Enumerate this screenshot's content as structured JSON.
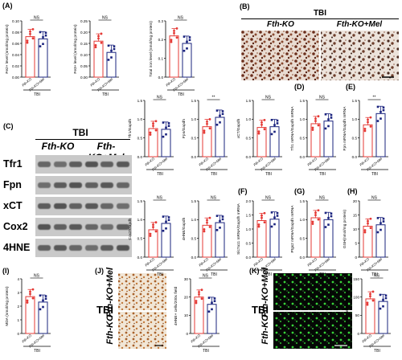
{
  "panels": {
    "A": {
      "label": "(A)"
    },
    "B": {
      "label": "(B)",
      "header": "TBI",
      "left": "Fth-KO",
      "right": "Fth-KO+Mel"
    },
    "C": {
      "label": "(C)",
      "header": "TBI",
      "left_group": "Fth-KO",
      "right_group": "Fth-KO+Mel",
      "bands": [
        "Tfr1",
        "Fpn",
        "xCT",
        "Cox2",
        "4HNE"
      ]
    },
    "D": {
      "label": "(D)"
    },
    "E": {
      "label": "(E)"
    },
    "F": {
      "label": "(F)"
    },
    "G": {
      "label": "(G)"
    },
    "H": {
      "label": "(H)"
    },
    "I": {
      "label": "(I)"
    },
    "J": {
      "label": "(J)",
      "tbi": "TBI",
      "row1": "Fth-KO",
      "row2": "Fth-KO+Mel"
    },
    "K": {
      "label": "(K)",
      "tbi": "TBI",
      "row1": "Fth-KO",
      "row2": "Fth-KO+Mel"
    }
  },
  "colors": {
    "ko": "#e53935",
    "mel": "#1a237e"
  },
  "chart_data": [
    {
      "id": "A1",
      "type": "bar",
      "ylabel": "Fe2+ level (nmol/mg protein)",
      "ylim": [
        0,
        0.1
      ],
      "yticks": [
        "0.00",
        "0.02",
        "0.04",
        "0.06",
        "0.08",
        "0.10"
      ],
      "categories": [
        "Fth-KO",
        "Fth-KO+Mel"
      ],
      "values": [
        0.072,
        0.068
      ],
      "sig": "NS",
      "group": "TBI"
    },
    {
      "id": "A2",
      "type": "bar",
      "ylabel": "Fe3+ level (nmol/mg protein)",
      "ylim": [
        0,
        0.25
      ],
      "yticks": [
        "0.00",
        "0.05",
        "0.10",
        "0.15",
        "0.20",
        "0.25"
      ],
      "categories": [
        "Fth-KO",
        "Fth-KO+Mel"
      ],
      "values": [
        0.16,
        0.11
      ],
      "sig": "NS",
      "group": "TBI"
    },
    {
      "id": "A3",
      "type": "bar",
      "ylabel": "Total iron level (nmol/mg protein)",
      "ylim": [
        0,
        0.3
      ],
      "yticks": [
        "0.0",
        "0.1",
        "0.2",
        "0.3"
      ],
      "categories": [
        "Fth-KO",
        "Fth-KO+Mel"
      ],
      "values": [
        0.22,
        0.18
      ],
      "sig": "NS",
      "group": "TBI"
    },
    {
      "id": "C1",
      "type": "bar",
      "ylabel": "Tfr1/Gapdh",
      "ylim": [
        0,
        1.5
      ],
      "yticks": [
        "0.0",
        "0.5",
        "1.0",
        "1.5"
      ],
      "categories": [
        "Fth-KO",
        "Fth-KO+Mel"
      ],
      "values": [
        0.75,
        0.73
      ],
      "sig": "NS",
      "group": "TBI"
    },
    {
      "id": "C2",
      "type": "bar",
      "ylabel": "Fpn/Gapdh",
      "ylim": [
        0,
        1.5
      ],
      "yticks": [
        "0.0",
        "0.5",
        "1.0",
        "1.5"
      ],
      "categories": [
        "Fth-KO",
        "Fth-KO+Mel"
      ],
      "values": [
        0.8,
        1.05
      ],
      "sig": "**",
      "group": "TBI"
    },
    {
      "id": "C3",
      "type": "bar",
      "ylabel": "xCT/Gapdh",
      "ylim": [
        0,
        1.5
      ],
      "yticks": [
        "0.0",
        "0.5",
        "1.0",
        "1.5"
      ],
      "categories": [
        "Fth-KO",
        "Fth-KO+Mel"
      ],
      "values": [
        0.78,
        0.8
      ],
      "sig": "NS",
      "group": "TBI"
    },
    {
      "id": "D",
      "type": "bar",
      "ylabel": "Tfr1 mRNA/Gapdh mRNA",
      "ylim": [
        0,
        1.5
      ],
      "yticks": [
        "0.0",
        "0.5",
        "1.0",
        "1.5"
      ],
      "categories": [
        "Fth-KO",
        "Fth-KO+Mel"
      ],
      "values": [
        0.88,
        0.95
      ],
      "sig": "NS",
      "group": "TBI"
    },
    {
      "id": "E",
      "type": "bar",
      "ylabel": "Fpn mRNA/Gapdh mRNA",
      "ylim": [
        0,
        1.5
      ],
      "yticks": [
        "0.0",
        "0.5",
        "1.0",
        "1.5"
      ],
      "categories": [
        "Fth-KO",
        "Fth-KO+Mel"
      ],
      "values": [
        0.85,
        1.15
      ],
      "sig": "**",
      "group": "TBI"
    },
    {
      "id": "C4",
      "type": "bar",
      "ylabel": "Cox2/Gapdh",
      "ylim": [
        0,
        1.5
      ],
      "yticks": [
        "0.0",
        "0.5",
        "1.0",
        "1.5"
      ],
      "categories": [
        "Fth-KO",
        "Fth-KO+Mel"
      ],
      "values": [
        0.73,
        0.9
      ],
      "sig": "NS",
      "group": "TBI"
    },
    {
      "id": "C5",
      "type": "bar",
      "ylabel": "4HNE/Gapdh",
      "ylim": [
        0,
        1.5
      ],
      "yticks": [
        "0.0",
        "0.5",
        "1.0",
        "1.5"
      ],
      "categories": [
        "Fth-KO",
        "Fth-KO+Mel"
      ],
      "values": [
        0.85,
        0.92
      ],
      "sig": "NS",
      "group": "TBI"
    },
    {
      "id": "F",
      "type": "bar",
      "ylabel": "Slc7a11 mRNA/Gapdh mRNA",
      "ylim": [
        0,
        2.0
      ],
      "yticks": [
        "0.0",
        "0.5",
        "1.0",
        "1.5",
        "2.0"
      ],
      "categories": [
        "Fth-KO",
        "Fth-KO+Mel"
      ],
      "values": [
        1.3,
        1.35
      ],
      "sig": "NS",
      "group": "TBI"
    },
    {
      "id": "G",
      "type": "bar",
      "ylabel": "Ptgs2 mRNA/Gapdh mRNA",
      "ylim": [
        0,
        1.5
      ],
      "yticks": [
        "0.0",
        "0.5",
        "1.0",
        "1.5"
      ],
      "categories": [
        "Fth-KO",
        "Fth-KO+Mel"
      ],
      "values": [
        1.05,
        1.0
      ],
      "sig": "NS",
      "group": "TBI"
    },
    {
      "id": "H",
      "type": "bar",
      "ylabel": "GSH(nmol/mg protein)",
      "ylim": [
        0,
        20
      ],
      "yticks": [
        "0",
        "5",
        "10",
        "15",
        "20"
      ],
      "categories": [
        "Fth-KO",
        "Fth-KO+Mel"
      ],
      "values": [
        11,
        11.5
      ],
      "sig": "NS",
      "group": "TBI"
    },
    {
      "id": "I",
      "type": "bar",
      "ylabel": "MDA (nmol/mg protein)",
      "ylim": [
        0,
        4
      ],
      "yticks": [
        "0",
        "1",
        "2",
        "3",
        "4"
      ],
      "categories": [
        "Fth-KO",
        "Fth-KO+Mel"
      ],
      "values": [
        2.7,
        2.3
      ],
      "sig": "NS",
      "group": "TBI"
    },
    {
      "id": "J",
      "type": "bar",
      "ylabel": "4HNE+ cells/200x field",
      "ylim": [
        0,
        30
      ],
      "yticks": [
        "0",
        "10",
        "20",
        "30"
      ],
      "categories": [
        "Fth-KO",
        "Fth-KO+Mel"
      ],
      "values": [
        20,
        16
      ],
      "sig": "NS",
      "group": "TBI"
    },
    {
      "id": "K",
      "type": "bar",
      "ylabel": "FJB+ cells/200x field",
      "ylim": [
        0,
        150
      ],
      "yticks": [
        "0",
        "50",
        "100",
        "150"
      ],
      "categories": [
        "Fth-KO",
        "Fth-KO+Mel"
      ],
      "values": [
        95,
        88
      ],
      "sig": "NS",
      "group": "TBI"
    }
  ]
}
